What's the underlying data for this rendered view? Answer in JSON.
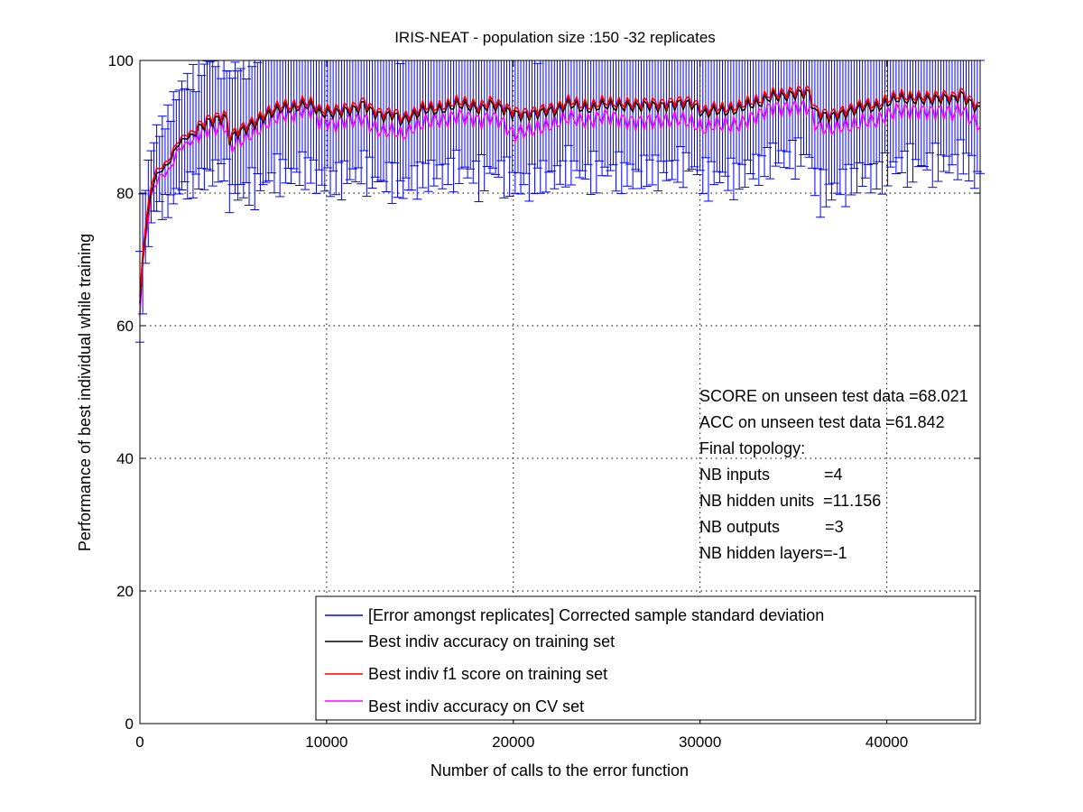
{
  "chart_data": {
    "type": "line",
    "title": "IRIS-NEAT - population size :150 -32 replicates",
    "xlabel": "Number of calls to the error function",
    "ylabel": "Performance of best individual while training",
    "xlim": [
      0,
      45000
    ],
    "ylim": [
      0,
      100
    ],
    "x_ticks": [
      "0",
      "10000",
      "20000",
      "30000",
      "40000"
    ],
    "y_ticks": [
      "0",
      "20",
      "40",
      "60",
      "80",
      "100"
    ],
    "x_tick_values": [
      0,
      10000,
      20000,
      30000,
      40000
    ],
    "y_tick_values": [
      0,
      20,
      40,
      60,
      80,
      100
    ],
    "grid": true,
    "legend_position": "bottom-right",
    "x_step": 150,
    "key_points": {
      "x": [
        0,
        150,
        300,
        450,
        600,
        800,
        1000,
        1300,
        1600,
        2000,
        2400,
        2800,
        3200,
        3600,
        4000,
        4400,
        4600,
        4800,
        5200,
        5800,
        6400,
        7000,
        7600,
        8200,
        8800,
        9300,
        9600,
        10000,
        10400,
        11000,
        11600,
        12000,
        12400,
        13000,
        13600,
        14000,
        14600,
        15200,
        15800,
        16400,
        17000,
        17600,
        18200,
        18800,
        19400,
        20000,
        20600,
        21200,
        21800,
        22400,
        23000,
        23600,
        24200,
        24800,
        25400,
        26000,
        26600,
        27200,
        27800,
        28400,
        29000,
        29600,
        30200,
        30800,
        31400,
        32000,
        32600,
        33200,
        33800,
        34400,
        35000,
        35600,
        35900,
        36100,
        36400,
        37000,
        37600,
        38200,
        38800,
        39400,
        40000,
        40600,
        41200,
        41800,
        42400,
        43000,
        43600,
        44000,
        44400,
        45000
      ],
      "acc_train": [
        63,
        70,
        74,
        77,
        80,
        82,
        83,
        83.5,
        84.5,
        87,
        88,
        88.5,
        89.5,
        90.5,
        91,
        91.5,
        92,
        88.5,
        89.5,
        90.5,
        91.5,
        92.5,
        93,
        92.5,
        93,
        92.5,
        91.5,
        91.5,
        91.5,
        92,
        92.5,
        93.5,
        92.5,
        92,
        92.5,
        91.5,
        92,
        93,
        92.5,
        92.5,
        93,
        92.5,
        92,
        93,
        92.5,
        92,
        92,
        92.5,
        93,
        93,
        94,
        93,
        92.5,
        93,
        92.5,
        92.5,
        92.5,
        93,
        93,
        93.5,
        94,
        94,
        92.5,
        93,
        92.5,
        92.5,
        93,
        93,
        94,
        94,
        94.5,
        95,
        95,
        92.5,
        92,
        92,
        92.5,
        93,
        93.5,
        93,
        93.5,
        94,
        93.5,
        93.5,
        93.5,
        94,
        94,
        95,
        94,
        93
      ],
      "f1_train": [
        64,
        71,
        75,
        78,
        81,
        83,
        83.5,
        84,
        85,
        87.5,
        88.5,
        89,
        90,
        91,
        91.5,
        92,
        92.5,
        89,
        90,
        91,
        92,
        93,
        93.5,
        93,
        93.5,
        93,
        92,
        92,
        92,
        92.5,
        93,
        94,
        93,
        92.5,
        93,
        92,
        92.5,
        93.5,
        93,
        93,
        93.5,
        93,
        92.5,
        93.5,
        93,
        92.5,
        92.5,
        93,
        93.5,
        93.5,
        94.5,
        93.5,
        93,
        93.5,
        93,
        93,
        93,
        93.5,
        93.5,
        94,
        94.5,
        94.5,
        93,
        93.5,
        93,
        93,
        93.5,
        93.5,
        94.5,
        94.5,
        95,
        95.5,
        95.5,
        93,
        92.5,
        92.5,
        93,
        93.5,
        94,
        93.5,
        94,
        94.5,
        94,
        94,
        94,
        94.5,
        94.5,
        95.5,
        94.5,
        93.5
      ],
      "acc_cv": [
        62,
        69,
        73,
        76,
        79,
        81,
        82,
        82.5,
        83,
        86,
        87,
        87.5,
        88.5,
        89.5,
        90,
        90.5,
        91,
        87.5,
        88.5,
        89.5,
        90.5,
        91.5,
        92,
        91.5,
        92,
        91.5,
        90,
        90,
        89.5,
        90.5,
        91,
        91.5,
        90.5,
        90,
        90.5,
        89.5,
        90.5,
        91,
        91,
        90.5,
        91,
        90.5,
        90,
        91,
        90.5,
        89,
        90,
        90.5,
        91,
        91.5,
        92,
        91,
        90.5,
        91,
        90.5,
        90,
        90,
        90.5,
        91,
        91.5,
        92,
        91.5,
        90.5,
        91,
        90.5,
        90,
        90.5,
        91,
        92,
        92,
        92.5,
        93,
        93,
        91,
        90.5,
        90.5,
        91,
        91,
        91.5,
        91,
        91.5,
        92,
        91.5,
        91.5,
        91.5,
        92,
        92,
        93,
        92,
        91
      ],
      "std_dev": [
        9,
        7.5,
        6.5,
        6,
        5.5,
        5.5,
        6,
        6.5,
        7,
        7.5,
        8,
        8,
        8.5,
        8.5,
        8.5,
        8.5,
        8.5,
        9,
        9.5,
        10,
        10.5,
        10.5,
        10.5,
        10.5,
        10.5,
        10.5,
        11,
        11,
        11,
        10.5,
        10.5,
        10.5,
        10.5,
        10.5,
        10.5,
        11,
        10.5,
        10.5,
        10.5,
        10.5,
        10.5,
        10.5,
        11,
        10.5,
        10.5,
        11,
        11,
        10.5,
        10.5,
        10.5,
        10,
        10.5,
        10.5,
        10.5,
        10.5,
        11,
        11,
        10.5,
        10.5,
        10.5,
        10,
        10,
        10.5,
        10.5,
        10.5,
        11,
        10.5,
        10.5,
        10,
        10,
        10,
        10,
        10,
        11.5,
        12,
        12,
        11.5,
        11,
        11,
        11,
        11,
        10.5,
        10.5,
        10.5,
        10.5,
        10.5,
        10.5,
        10,
        10.5,
        11
      ]
    },
    "series": [
      {
        "name": "[Error amongst replicates] Corrected sample standard deviation",
        "color": "#0000ff",
        "kind": "errorbar"
      },
      {
        "name": "Best indiv accuracy on training set",
        "color": "#000000",
        "kind": "line",
        "key": "acc_train"
      },
      {
        "name": "Best indiv f1 score on training set",
        "color": "#ff0000",
        "kind": "line",
        "key": "f1_train"
      },
      {
        "name": "Best indiv accuracy on CV set",
        "color": "#ff00ff",
        "kind": "line",
        "key": "acc_cv"
      }
    ],
    "annotations": [
      "SCORE on unseen test data =68.021",
      "ACC on unseen test data =61.842",
      "Final topology:",
      "NB inputs            =4",
      "NB hidden units  =11.156",
      "NB outputs          =3",
      "NB hidden layers=-1"
    ]
  }
}
